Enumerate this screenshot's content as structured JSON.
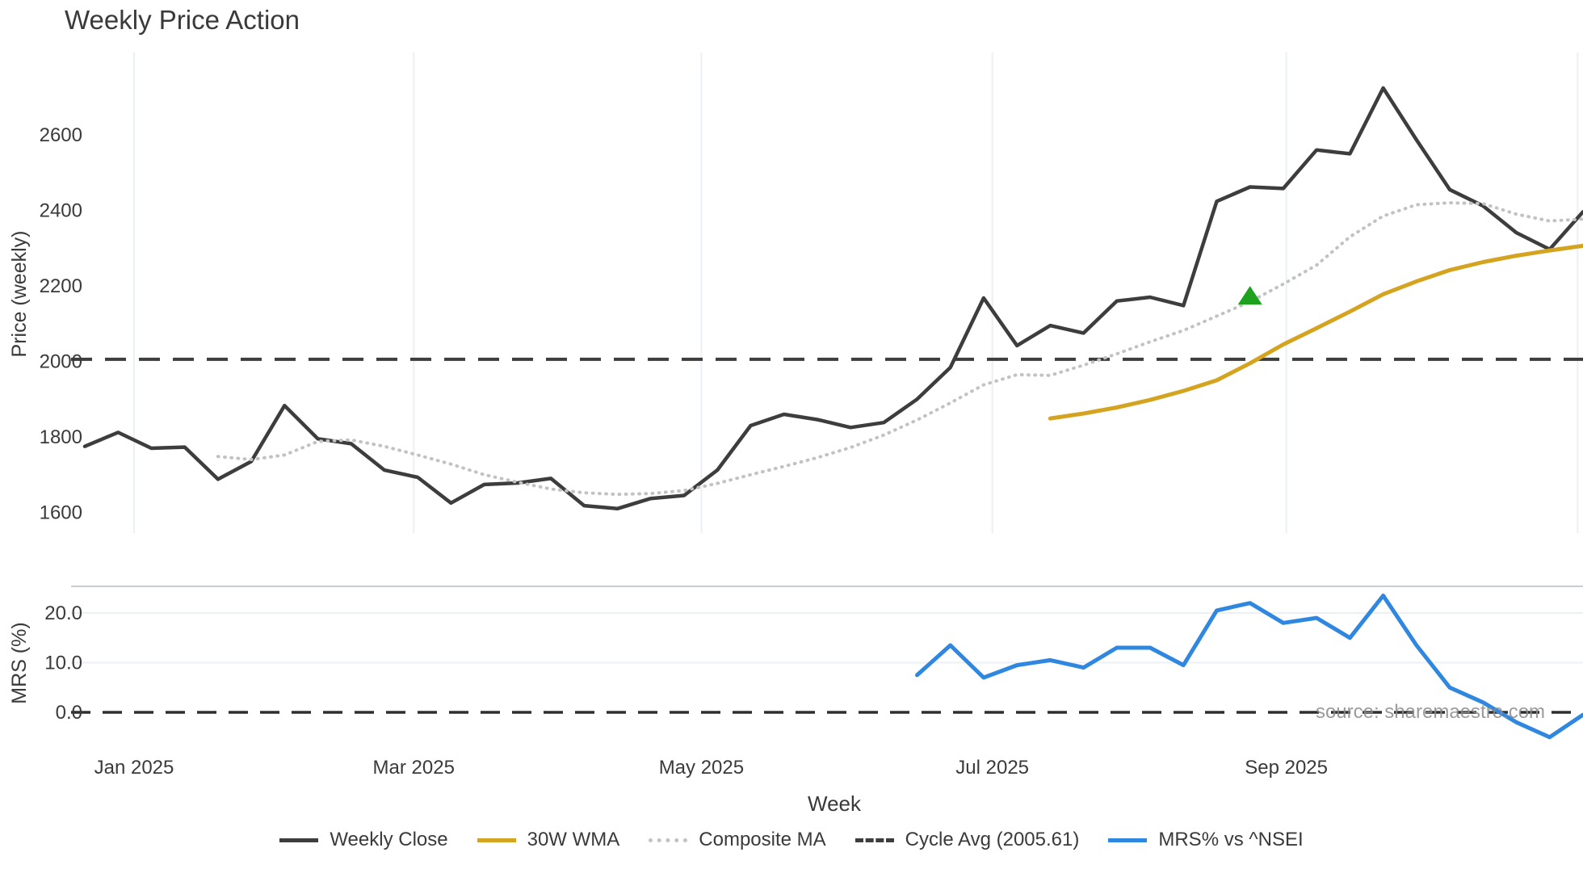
{
  "title": "Weekly Price Action",
  "watermark": "source: sharemaestro.com",
  "colors": {
    "background": "#ffffff",
    "grid": "#ecf0f5",
    "axis_text": "#3a3a3a",
    "spine": "#c9cdd2",
    "price_line": "#3d3d3d",
    "wma_line": "#d4a31f",
    "composite_ma": "#c2c2c2",
    "cycle_avg": "#3d3d3d",
    "mrs_line": "#2f87e0",
    "marker_green": "#1ea11e",
    "watermark": "#8a8a8a"
  },
  "legend": [
    {
      "label": "Weekly Close",
      "color": "#3d3d3d",
      "line_style": "solid"
    },
    {
      "label": "30W WMA",
      "color": "#d4a31f",
      "line_style": "solid"
    },
    {
      "label": "Composite MA",
      "color": "#c2c2c2",
      "line_style": "dotted"
    },
    {
      "label": "Cycle Avg (2005.61)",
      "color": "#3d3d3d",
      "line_style": "dashed"
    },
    {
      "label": "MRS% vs ^NSEI",
      "color": "#2f87e0",
      "line_style": "solid"
    }
  ],
  "chart_data": [
    {
      "type": "line",
      "panel": "price",
      "title": "Weekly Price Action",
      "ylabel": "Price (weekly)",
      "xlabel": "Week",
      "x_unit": "week_index",
      "ylim": [
        1545,
        2825
      ],
      "yticks": [
        1600,
        1800,
        2000,
        2200,
        2400,
        2600
      ],
      "xticks": [
        {
          "pos": 1.48,
          "label": "Jan 2025"
        },
        {
          "pos": 9.88,
          "label": "Mar 2025"
        },
        {
          "pos": 18.52,
          "label": "May 2025"
        },
        {
          "pos": 27.26,
          "label": "Jul 2025"
        },
        {
          "pos": 36.09,
          "label": "Sep 2025"
        },
        {
          "pos": 44.84,
          "label": ""
        }
      ],
      "grid": "vertical-only",
      "reference_line": {
        "name": "Cycle Avg (2005.61)",
        "value": 2005.61,
        "line_style": "dashed",
        "color": "#3d3d3d"
      },
      "marker": {
        "shape": "triangle-up",
        "color": "#1ea11e",
        "week": 35,
        "value": 2172
      },
      "series": [
        {
          "name": "Weekly Close",
          "color": "#3d3d3d",
          "line_style": "solid",
          "width": 4.5,
          "start_week": 0,
          "values": [
            1775,
            1812,
            1770,
            1773,
            1688,
            1735,
            1883,
            1795,
            1782,
            1712,
            1693,
            1625,
            1674,
            1678,
            1690,
            1618,
            1610,
            1637,
            1645,
            1712,
            1830,
            1860,
            1846,
            1825,
            1838,
            1900,
            1984,
            2168,
            2042,
            2095,
            2075,
            2160,
            2170,
            2148,
            2424,
            2462,
            2458,
            2560,
            2550,
            2724,
            2587,
            2455,
            2412,
            2341,
            2297,
            2396
          ]
        },
        {
          "name": "Composite MA",
          "color": "#c2c2c2",
          "line_style": "dotted",
          "width": 4,
          "start_week": 4,
          "values": [
            1748,
            1740,
            1752,
            1788,
            1792,
            1775,
            1752,
            1728,
            1700,
            1680,
            1662,
            1652,
            1648,
            1650,
            1658,
            1677,
            1700,
            1722,
            1745,
            1772,
            1805,
            1845,
            1890,
            1938,
            1965,
            1963,
            1990,
            2020,
            2052,
            2082,
            2120,
            2158,
            2205,
            2255,
            2330,
            2385,
            2415,
            2420,
            2418,
            2390,
            2372,
            2377
          ]
        },
        {
          "name": "30W WMA",
          "color": "#d4a31f",
          "line_style": "solid",
          "width": 5,
          "start_week": 29,
          "values": [
            1849,
            1862,
            1878,
            1898,
            1922,
            1950,
            1995,
            2045,
            2088,
            2132,
            2178,
            2212,
            2242,
            2263,
            2280,
            2294,
            2306
          ]
        }
      ]
    },
    {
      "type": "line",
      "panel": "mrs",
      "ylabel": "MRS (%)",
      "ylim": [
        -6.3,
        25.4
      ],
      "yticks": [
        0.0,
        10.0,
        20.0
      ],
      "baseline": 0,
      "grid": "horizontal-only",
      "series": [
        {
          "name": "MRS% vs ^NSEI",
          "color": "#2f87e0",
          "line_style": "solid",
          "width": 5,
          "start_week": 25,
          "values": [
            7.5,
            13.5,
            7.0,
            9.5,
            10.5,
            9.0,
            13.0,
            13.0,
            9.5,
            20.5,
            22.0,
            18.0,
            19.0,
            15.0,
            23.5,
            13.5,
            5.0,
            2.0,
            -2.0,
            -5.0,
            -0.5
          ]
        }
      ]
    }
  ]
}
